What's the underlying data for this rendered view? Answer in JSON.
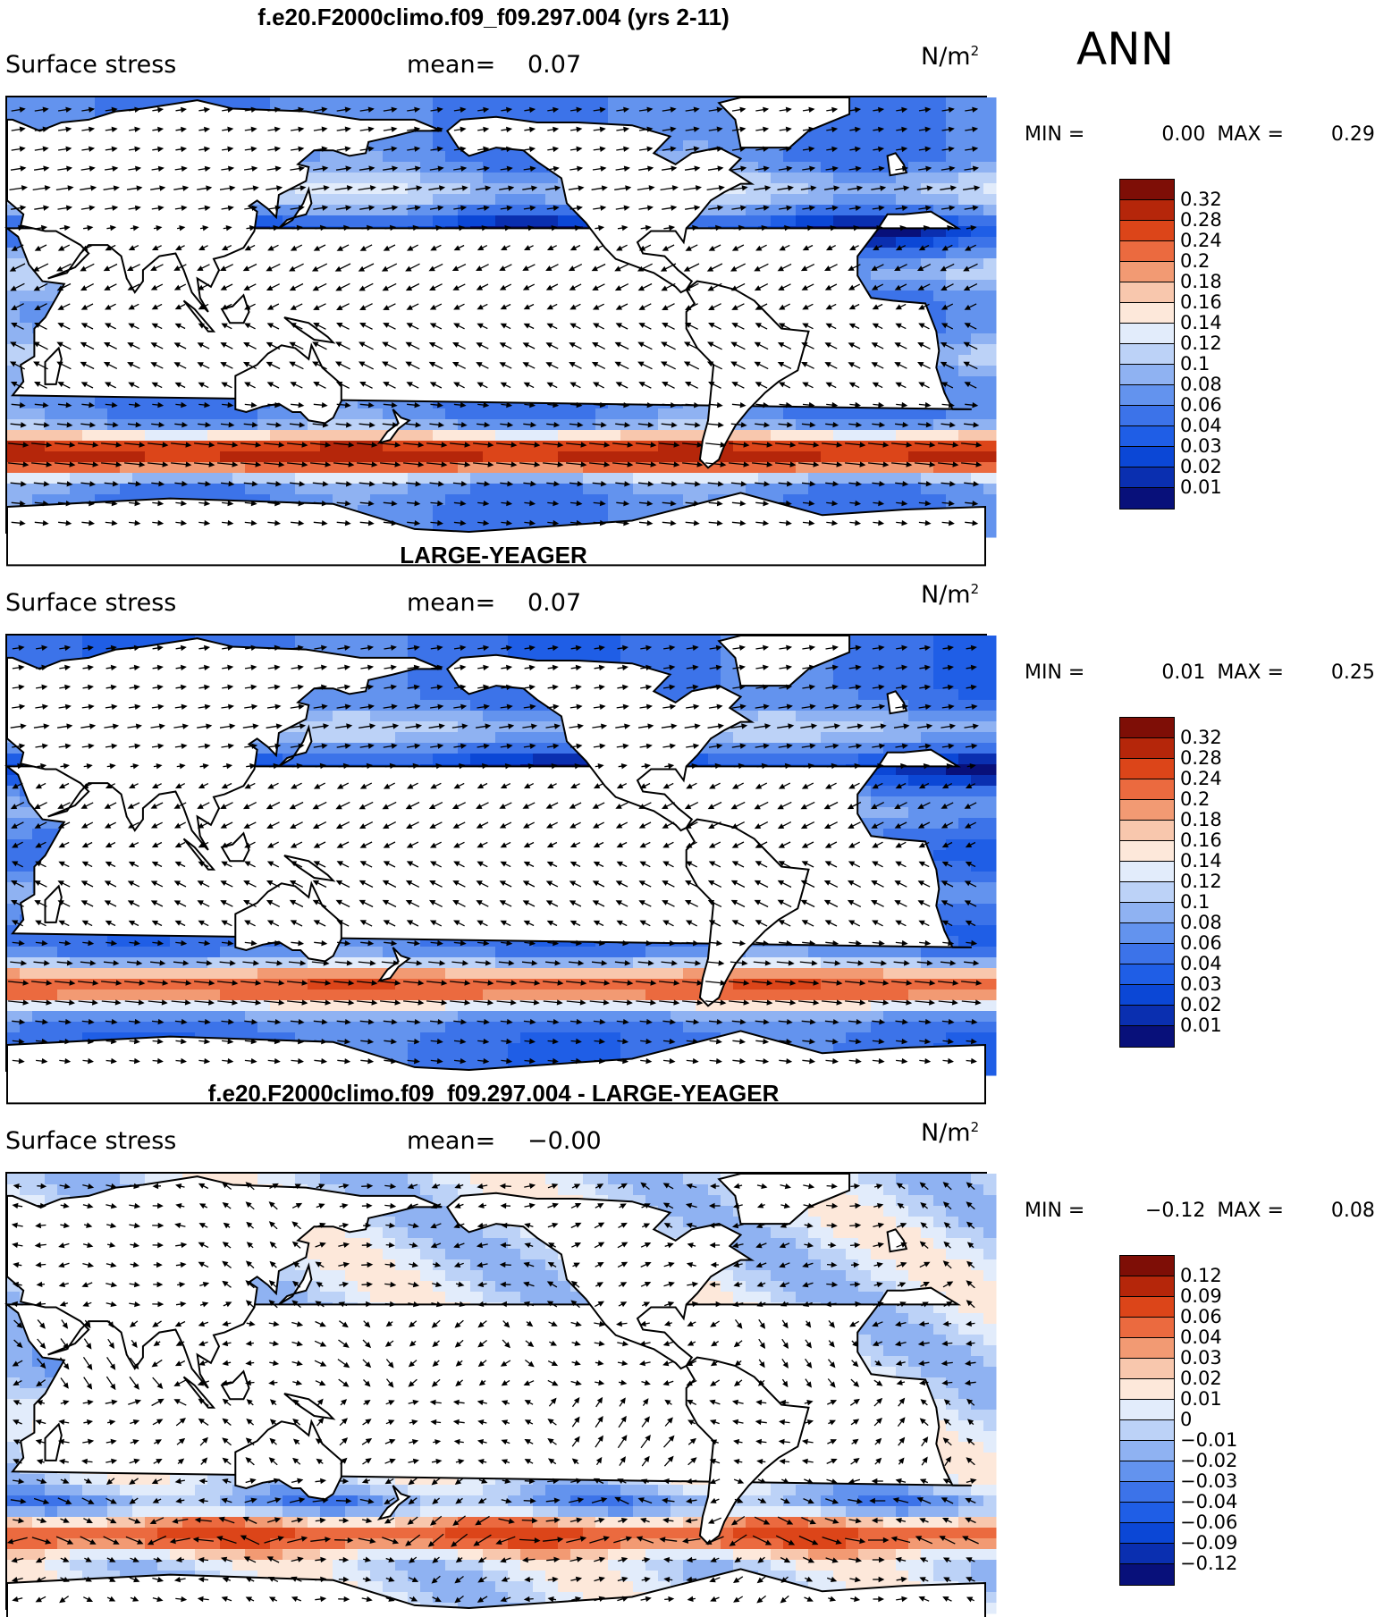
{
  "season": "ANN",
  "palette": {
    "land": "#ffffff",
    "outline": "#000000",
    "scale": [
      "#08107a",
      "#0a2fb0",
      "#0b47d6",
      "#1f5ee6",
      "#3c73e9",
      "#6393ee",
      "#8fb2f2",
      "#bcd2f7",
      "#e2ecfb",
      "#fde8da",
      "#f8c7ad",
      "#f29a73",
      "#eb6a3f",
      "#dc4519",
      "#b5260a",
      "#7e0e06"
    ]
  },
  "panels": [
    {
      "title": "f.e20.F2000climo.f09_f09.297.004 (yrs 2-11)",
      "variable": "Surface stress",
      "mean_label": "mean=",
      "mean_value": "0.07",
      "units_base": "N/m",
      "units_exp": "2",
      "min_label": "MIN =",
      "min_value": "0.00",
      "max_label": "MAX =",
      "max_value": "0.29",
      "levels": [
        "0.32",
        "0.28",
        "0.24",
        "0.2",
        "0.18",
        "0.16",
        "0.14",
        "0.12",
        "0.1",
        "0.08",
        "0.06",
        "0.04",
        "0.03",
        "0.02",
        "0.01"
      ]
    },
    {
      "title": "LARGE-YEAGER",
      "variable": "Surface stress",
      "mean_label": "mean=",
      "mean_value": "0.07",
      "units_base": "N/m",
      "units_exp": "2",
      "min_label": "MIN =",
      "min_value": "0.01",
      "max_label": "MAX =",
      "max_value": "0.25",
      "levels": [
        "0.32",
        "0.28",
        "0.24",
        "0.2",
        "0.18",
        "0.16",
        "0.14",
        "0.12",
        "0.1",
        "0.08",
        "0.06",
        "0.04",
        "0.03",
        "0.02",
        "0.01"
      ]
    },
    {
      "title": "f.e20.F2000climo.f09_f09.297.004 - LARGE-YEAGER",
      "variable": "Surface stress",
      "mean_label": "mean=",
      "mean_value": "−0.00",
      "units_base": "N/m",
      "units_exp": "2",
      "min_label": "MIN =",
      "min_value": "−0.12",
      "max_label": "MAX =",
      "max_value": "0.08",
      "levels": [
        "0.12",
        "0.09",
        "0.06",
        "0.04",
        "0.03",
        "0.02",
        "0.01",
        "0",
        "−0.01",
        "−0.02",
        "−0.03",
        "−0.04",
        "−0.06",
        "−0.09",
        "−0.12"
      ]
    }
  ]
}
